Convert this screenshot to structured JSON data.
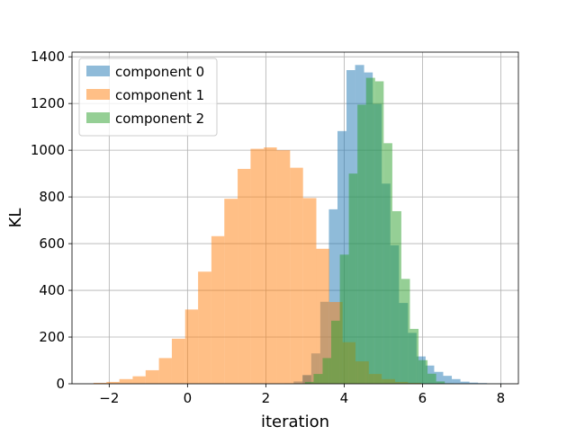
{
  "chart_data": {
    "type": "bar",
    "xlabel": "iteration",
    "ylabel": "KL",
    "xlim": [
      -2.95,
      8.45
    ],
    "ylim": [
      0,
      1420
    ],
    "grid": true,
    "legend_position": "top-left",
    "x_ticks": [
      {
        "value": -2,
        "label": "−2"
      },
      {
        "value": 0,
        "label": "0"
      },
      {
        "value": 2,
        "label": "2"
      },
      {
        "value": 4,
        "label": "4"
      },
      {
        "value": 6,
        "label": "6"
      },
      {
        "value": 8,
        "label": "8"
      }
    ],
    "y_ticks": [
      {
        "value": 0,
        "label": "0"
      },
      {
        "value": 200,
        "label": "200"
      },
      {
        "value": 400,
        "label": "400"
      },
      {
        "value": 600,
        "label": "600"
      },
      {
        "value": 800,
        "label": "800"
      },
      {
        "value": 1000,
        "label": "1000"
      },
      {
        "value": 1200,
        "label": "1200"
      },
      {
        "value": 1400,
        "label": "1400"
      }
    ],
    "series": [
      {
        "name": "component 0",
        "color": "#1f77b4",
        "opacity": 0.5,
        "bins": [
          [
            2.49,
            2.71,
            2
          ],
          [
            2.71,
            2.94,
            10
          ],
          [
            2.94,
            3.16,
            37
          ],
          [
            2.94,
            3.16,
            37
          ],
          [
            3.16,
            3.39,
            130
          ],
          [
            3.39,
            3.61,
            351
          ],
          [
            3.61,
            3.83,
            747
          ],
          [
            3.83,
            4.06,
            1082
          ],
          [
            4.06,
            4.28,
            1343
          ],
          [
            4.28,
            4.51,
            1365
          ],
          [
            4.51,
            4.73,
            1333
          ],
          [
            4.73,
            4.96,
            1198
          ],
          [
            4.96,
            5.18,
            857
          ],
          [
            5.18,
            5.4,
            593
          ],
          [
            5.4,
            5.63,
            346
          ],
          [
            5.63,
            5.85,
            218
          ],
          [
            5.85,
            6.08,
            117
          ],
          [
            6.08,
            6.3,
            78
          ],
          [
            6.3,
            6.53,
            51
          ],
          [
            6.53,
            6.75,
            34
          ],
          [
            6.75,
            6.97,
            20
          ],
          [
            6.97,
            7.2,
            9
          ],
          [
            7.2,
            7.42,
            5
          ],
          [
            7.42,
            7.65,
            3
          ],
          [
            7.65,
            7.87,
            1
          ],
          [
            7.87,
            8.09,
            1
          ]
        ]
      },
      {
        "name": "component 1",
        "color": "#ff7f0e",
        "opacity": 0.5,
        "bins": [
          [
            -2.4,
            -2.07,
            4
          ],
          [
            -2.07,
            -1.74,
            8
          ],
          [
            -1.74,
            -1.4,
            20
          ],
          [
            -1.4,
            -1.07,
            32
          ],
          [
            -1.07,
            -0.73,
            58
          ],
          [
            -0.73,
            -0.4,
            110
          ],
          [
            -0.4,
            -0.06,
            193
          ],
          [
            -0.06,
            0.27,
            318
          ],
          [
            0.27,
            0.61,
            480
          ],
          [
            0.61,
            0.94,
            632
          ],
          [
            0.94,
            1.28,
            792
          ],
          [
            1.28,
            1.61,
            920
          ],
          [
            1.61,
            1.95,
            1006
          ],
          [
            1.95,
            2.28,
            1012
          ],
          [
            2.28,
            2.62,
            1000
          ],
          [
            2.62,
            2.95,
            925
          ],
          [
            2.95,
            3.29,
            795
          ],
          [
            3.29,
            3.62,
            578
          ],
          [
            3.62,
            3.96,
            350
          ],
          [
            3.96,
            4.29,
            178
          ],
          [
            4.29,
            4.63,
            96
          ],
          [
            4.63,
            4.96,
            42
          ],
          [
            4.96,
            5.3,
            20
          ],
          [
            5.3,
            5.63,
            8
          ],
          [
            5.63,
            5.97,
            4
          ]
        ]
      },
      {
        "name": "component 2",
        "color": "#2ca02c",
        "opacity": 0.5,
        "bins": [
          [
            3.0,
            3.22,
            8
          ],
          [
            3.22,
            3.45,
            42
          ],
          [
            3.45,
            3.67,
            110
          ],
          [
            3.67,
            3.89,
            270
          ],
          [
            3.89,
            4.12,
            553
          ],
          [
            4.12,
            4.34,
            900
          ],
          [
            4.34,
            4.56,
            1195
          ],
          [
            4.56,
            4.79,
            1310
          ],
          [
            4.79,
            5.01,
            1295
          ],
          [
            5.01,
            5.23,
            1030
          ],
          [
            5.23,
            5.46,
            739
          ],
          [
            5.46,
            5.68,
            449
          ],
          [
            5.68,
            5.9,
            235
          ],
          [
            5.9,
            6.13,
            101
          ],
          [
            6.13,
            6.35,
            43
          ],
          [
            6.35,
            6.57,
            10
          ],
          [
            6.57,
            6.8,
            2
          ]
        ]
      }
    ]
  }
}
